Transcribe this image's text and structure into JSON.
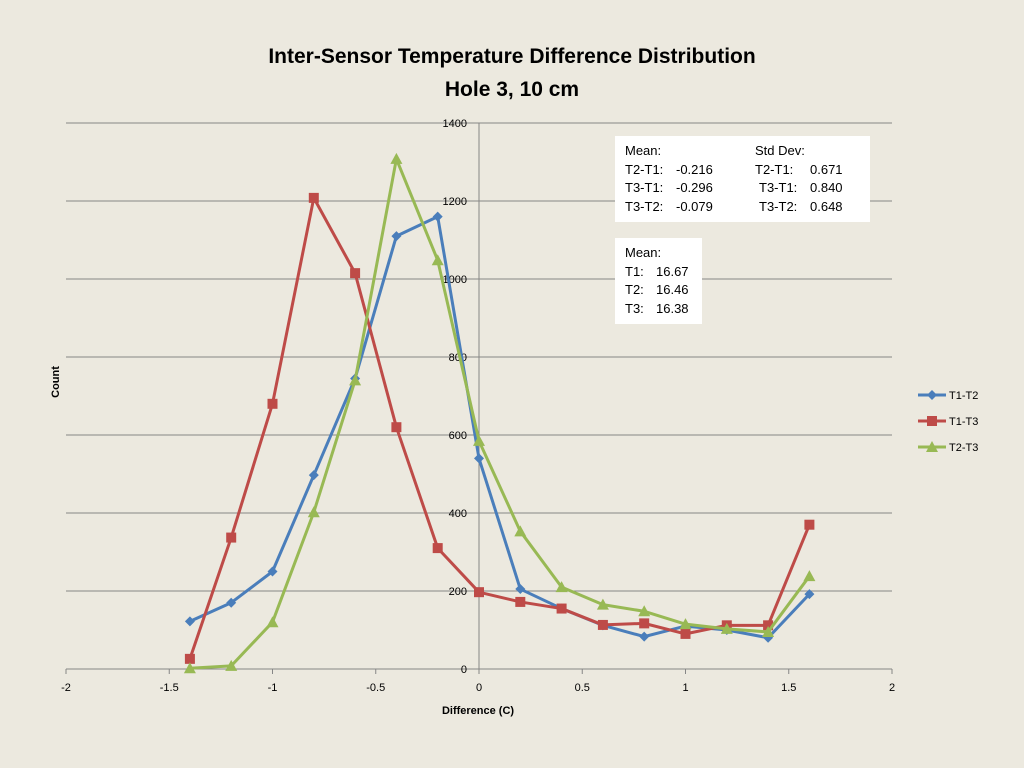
{
  "chart_data": {
    "type": "line",
    "title": "Inter-Sensor Temperature Difference Distribution",
    "subtitle": "Hole 3, 10 cm",
    "xlabel": "Difference (C)",
    "ylabel": "Count",
    "xlim": [
      -2,
      2
    ],
    "ylim": [
      0,
      1400
    ],
    "x_ticks": [
      "-2",
      "-1.5",
      "-1",
      "-0.5",
      "0",
      "0.5",
      "1",
      "1.5",
      "2"
    ],
    "y_ticks": [
      "0",
      "200",
      "400",
      "600",
      "800",
      "1000",
      "1200",
      "1400"
    ],
    "grid": "horizontal",
    "legend_position": "right",
    "series": [
      {
        "name": "T1-T2",
        "color": "#4A7EBB",
        "marker": "diamond",
        "x": [
          -1.4,
          -1.2,
          -1.0,
          -0.8,
          -0.6,
          -0.4,
          -0.2,
          0.0,
          0.2,
          0.4,
          0.6,
          0.8,
          1.0,
          1.2,
          1.4,
          1.6
        ],
        "values": [
          122,
          170,
          250,
          497,
          745,
          1110,
          1160,
          540,
          205,
          155,
          112,
          83,
          110,
          100,
          80,
          192
        ]
      },
      {
        "name": "T1-T3",
        "color": "#BE4B48",
        "marker": "square",
        "x": [
          -1.4,
          -1.2,
          -1.0,
          -0.8,
          -0.6,
          -0.4,
          -0.2,
          0.0,
          0.2,
          0.4,
          0.6,
          0.8,
          1.0,
          1.2,
          1.4,
          1.6
        ],
        "values": [
          26,
          337,
          680,
          1208,
          1015,
          620,
          310,
          197,
          172,
          155,
          113,
          117,
          90,
          112,
          112,
          370
        ]
      },
      {
        "name": "T2-T3",
        "color": "#98B954",
        "marker": "triangle",
        "x": [
          -1.4,
          -1.2,
          -1.0,
          -0.8,
          -0.6,
          -0.4,
          -0.2,
          0.0,
          0.2,
          0.4,
          0.6,
          0.8,
          1.0,
          1.2,
          1.4,
          1.6
        ],
        "values": [
          2,
          8,
          120,
          402,
          740,
          1308,
          1048,
          585,
          353,
          210,
          165,
          148,
          115,
          103,
          95,
          238
        ]
      }
    ]
  },
  "stats_box": {
    "mean_header": "Mean:",
    "std_header": "Std Dev:",
    "rows": [
      {
        "label": "T2-T1:",
        "mean": "-0.216",
        "std_label": "T2-T1:",
        "std": "0.671"
      },
      {
        "label": "T3-T1:",
        "mean": "-0.296",
        "std_label": "T3-T1:",
        "std": "0.840"
      },
      {
        "label": "T3-T2:",
        "mean": "-0.079",
        "std_label": "T3-T2:",
        "std": "0.648"
      }
    ]
  },
  "mean_box": {
    "header": "Mean:",
    "rows": [
      {
        "label": "T1:",
        "value": "16.67"
      },
      {
        "label": "T2:",
        "value": "16.46"
      },
      {
        "label": "T3:",
        "value": "16.38"
      }
    ]
  }
}
